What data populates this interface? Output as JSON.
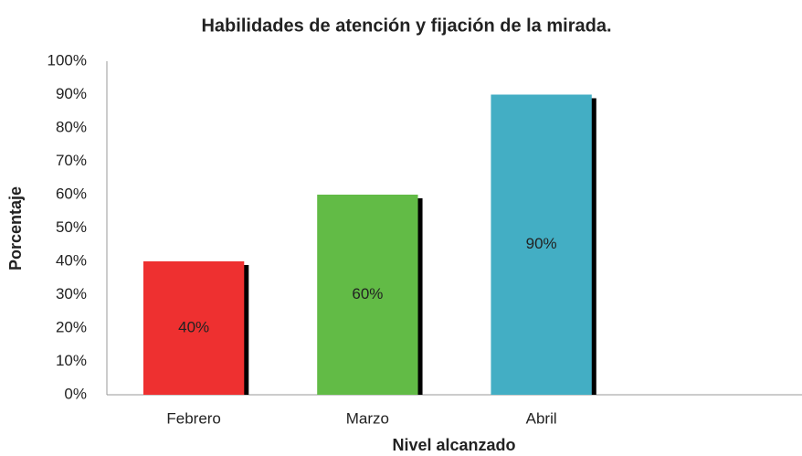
{
  "chart_data": {
    "type": "bar",
    "title": "Habilidades de atención y fijación de la mirada.",
    "x_label": "Nivel alcanzado",
    "y_label": "Porcentaje",
    "categories": [
      "Febrero",
      "Marzo",
      "Abril",
      null
    ],
    "values": [
      40,
      60,
      90,
      null
    ],
    "value_labels": [
      "40%",
      "60%",
      "90%",
      null
    ],
    "colors": [
      "#ee3030",
      "#62bb46",
      "#43aec4",
      null
    ],
    "ylim": [
      0,
      100
    ],
    "yticks": [
      {
        "value": 0,
        "label": "0%"
      },
      {
        "value": 10,
        "label": "10%"
      },
      {
        "value": 20,
        "label": "20%"
      },
      {
        "value": 30,
        "label": "30%"
      },
      {
        "value": 40,
        "label": "40%"
      },
      {
        "value": 50,
        "label": "50%"
      },
      {
        "value": 60,
        "label": "60%"
      },
      {
        "value": 70,
        "label": "70%"
      },
      {
        "value": 80,
        "label": "80%"
      },
      {
        "value": 90,
        "label": "90%"
      },
      {
        "value": 100,
        "label": "100%"
      }
    ],
    "grid": false
  }
}
